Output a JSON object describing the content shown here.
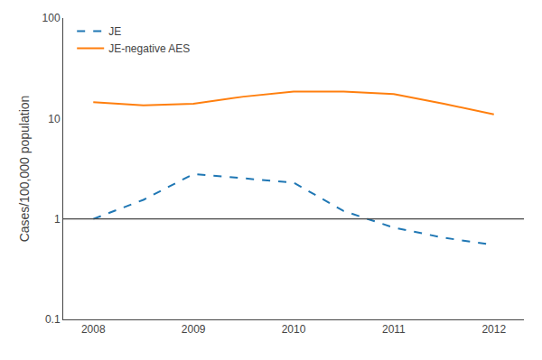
{
  "chart_data": {
    "type": "line",
    "x": [
      2008,
      2008.5,
      2009,
      2009.5,
      2010,
      2010.5,
      2011,
      2011.5,
      2012
    ],
    "series": [
      {
        "name": "JE",
        "values": [
          1.0,
          1.55,
          2.8,
          2.55,
          2.3,
          1.2,
          0.82,
          0.65,
          0.55
        ],
        "line_style": "dashed"
      },
      {
        "name": "JE-negative AES",
        "values": [
          14.5,
          13.5,
          14.0,
          16.5,
          18.5,
          18.5,
          17.5,
          14.0,
          11.0
        ],
        "line_style": "solid"
      }
    ],
    "ylabel": "Cases/100,000 population",
    "xlim": [
      2007.7,
      2012.3
    ],
    "xticks": [
      2008,
      2009,
      2010,
      2011,
      2012
    ],
    "ylim": [
      0.1,
      100
    ],
    "yticks": [
      0.1,
      1,
      10,
      100
    ],
    "log": "y",
    "grid": false,
    "legend": "upper left",
    "hlines": [
      1.0
    ]
  }
}
